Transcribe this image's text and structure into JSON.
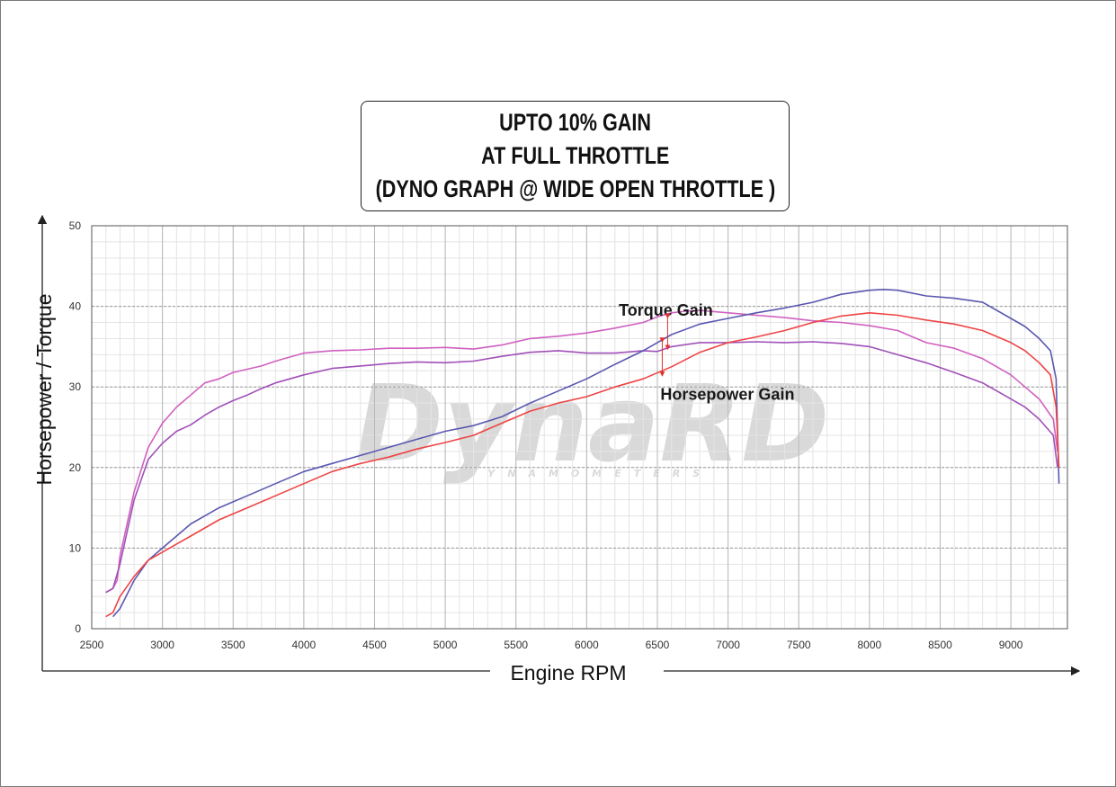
{
  "title": {
    "line1": "UPTO 10% GAIN",
    "line2": "AT FULL THROTTLE",
    "line3": "(DYNO GRAPH @ WIDE OPEN THROTTLE )"
  },
  "watermark": {
    "brand": "DynaRD",
    "tagline": "DYNAMOMETERS"
  },
  "chart_data": {
    "type": "line",
    "xlabel": "Engine RPM",
    "ylabel": "Horsepower / Torque",
    "xlim": [
      2500,
      9400
    ],
    "ylim": [
      0,
      50
    ],
    "x_ticks": [
      2500,
      3000,
      3500,
      4000,
      4500,
      5000,
      5500,
      6000,
      6500,
      7000,
      7500,
      8000,
      8500,
      9000
    ],
    "y_ticks": [
      0,
      10,
      20,
      30,
      40,
      50
    ],
    "grid": true,
    "annotations": [
      {
        "text": "Torque Gain",
        "x": 6560,
        "y": 39.5
      },
      {
        "text": "Horsepower Gain",
        "x": 6560,
        "y": 29.4
      }
    ],
    "series": [
      {
        "color": "#d060c0",
        "x": [
          2600,
          2650,
          2680,
          2700,
          2750,
          2800,
          2900,
          3000,
          3100,
          3200,
          3300,
          3400,
          3500,
          3600,
          3700,
          3800,
          3900,
          4000,
          4200,
          4400,
          4600,
          4800,
          5000,
          5200,
          5400,
          5600,
          5800,
          6000,
          6200,
          6400,
          6500,
          6600,
          6700,
          6800,
          7000,
          7200,
          7400,
          7600,
          7800,
          8000,
          8200,
          8400,
          8600,
          8800,
          9000,
          9100,
          9200,
          9300,
          9330
        ],
        "values": [
          4.5,
          5,
          6,
          9,
          13,
          17,
          22.5,
          25.5,
          27.5,
          29,
          30.5,
          31,
          31.8,
          32.2,
          32.6,
          33.2,
          33.7,
          34.2,
          34.5,
          34.6,
          34.8,
          34.8,
          34.9,
          34.7,
          35.2,
          36,
          36.3,
          36.7,
          37.3,
          38,
          38.7,
          39.2,
          39.4,
          39.5,
          39.2,
          38.9,
          38.6,
          38.2,
          38,
          37.6,
          37,
          35.5,
          34.8,
          33.5,
          31.5,
          30,
          28.5,
          26,
          22
        ]
      },
      {
        "color": "#a050b8",
        "x": [
          2600,
          2650,
          2700,
          2750,
          2800,
          2900,
          3000,
          3100,
          3200,
          3300,
          3400,
          3500,
          3600,
          3700,
          3800,
          4000,
          4200,
          4400,
          4600,
          4800,
          5000,
          5200,
          5400,
          5600,
          5800,
          6000,
          6200,
          6400,
          6500,
          6600,
          6800,
          7000,
          7200,
          7400,
          7600,
          7800,
          8000,
          8200,
          8400,
          8600,
          8800,
          9000,
          9100,
          9200,
          9300,
          9330
        ],
        "values": [
          4.5,
          5,
          8,
          12,
          16,
          21,
          23,
          24.5,
          25.3,
          26.5,
          27.5,
          28.3,
          29,
          29.8,
          30.5,
          31.5,
          32.3,
          32.6,
          32.9,
          33.1,
          33,
          33.2,
          33.8,
          34.3,
          34.5,
          34.2,
          34.2,
          34.5,
          34.4,
          35,
          35.5,
          35.5,
          35.6,
          35.5,
          35.6,
          35.4,
          35,
          34,
          33,
          31.8,
          30.5,
          28.5,
          27.5,
          26,
          24,
          20
        ]
      },
      {
        "color": "#5a58b0",
        "x": [
          2650,
          2700,
          2800,
          2900,
          3000,
          3100,
          3200,
          3300,
          3400,
          3600,
          3800,
          4000,
          4200,
          4400,
          4600,
          4800,
          5000,
          5200,
          5400,
          5600,
          5800,
          6000,
          6200,
          6400,
          6600,
          6800,
          7000,
          7200,
          7400,
          7600,
          7800,
          8000,
          8100,
          8200,
          8400,
          8600,
          8800,
          9000,
          9100,
          9200,
          9280,
          9320,
          9340
        ],
        "values": [
          1.5,
          2.5,
          6,
          8.5,
          10,
          11.5,
          13,
          14,
          15,
          16.5,
          18,
          19.5,
          20.5,
          21.5,
          22.5,
          23.5,
          24.5,
          25.2,
          26.3,
          28,
          29.5,
          31,
          32.8,
          34.5,
          36.5,
          37.8,
          38.5,
          39.2,
          39.8,
          40.5,
          41.5,
          42,
          42.1,
          42,
          41.3,
          41,
          40.5,
          38.5,
          37.5,
          36,
          34.5,
          31,
          18
        ]
      },
      {
        "color": "#ee4444",
        "x": [
          2600,
          2650,
          2700,
          2800,
          2900,
          3000,
          3100,
          3200,
          3300,
          3400,
          3600,
          3800,
          4000,
          4200,
          4400,
          4600,
          4800,
          5000,
          5200,
          5400,
          5600,
          5800,
          6000,
          6200,
          6400,
          6600,
          6800,
          7000,
          7200,
          7400,
          7600,
          7800,
          8000,
          8200,
          8400,
          8600,
          8800,
          9000,
          9100,
          9200,
          9280,
          9320,
          9340
        ],
        "values": [
          1.5,
          2,
          4,
          6.5,
          8.5,
          9.5,
          10.5,
          11.5,
          12.5,
          13.5,
          15,
          16.5,
          18,
          19.5,
          20.5,
          21.3,
          22.3,
          23.1,
          24,
          25.5,
          27,
          28,
          28.8,
          30,
          31,
          32.5,
          34.3,
          35.5,
          36.2,
          37,
          38,
          38.8,
          39.2,
          38.9,
          38.3,
          37.8,
          37,
          35.5,
          34.5,
          33,
          31.5,
          27.5,
          20
        ]
      }
    ]
  }
}
